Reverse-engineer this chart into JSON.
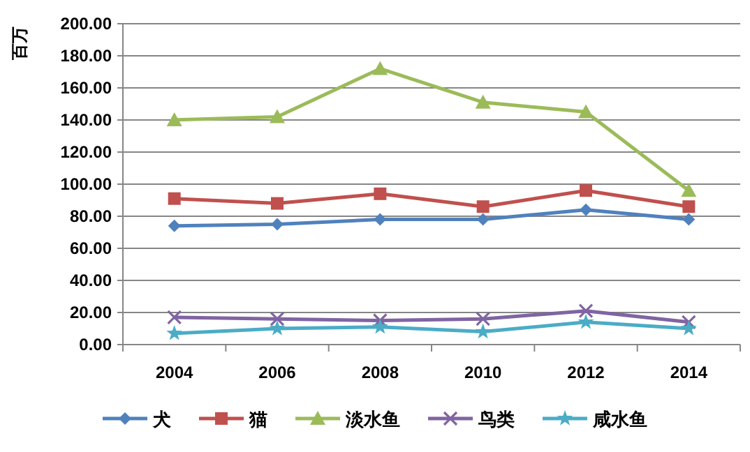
{
  "chart_data": {
    "type": "line",
    "ylabel": "百万",
    "categories": [
      "2004",
      "2006",
      "2008",
      "2010",
      "2012",
      "2014"
    ],
    "series": [
      {
        "name": "犬",
        "color": "#4f81bd",
        "marker": "diamond",
        "values": [
          74,
          75,
          78,
          78,
          84,
          78
        ]
      },
      {
        "name": "猫",
        "color": "#c0504d",
        "marker": "square",
        "values": [
          91,
          88,
          94,
          86,
          96,
          86
        ]
      },
      {
        "name": "淡水鱼",
        "color": "#9bbb59",
        "marker": "triangle",
        "values": [
          140,
          142,
          172,
          151,
          145,
          96
        ]
      },
      {
        "name": "鸟类",
        "color": "#8064a2",
        "marker": "cross",
        "values": [
          17,
          16,
          15,
          16,
          21,
          14
        ]
      },
      {
        "name": "咸水鱼",
        "color": "#4bacc6",
        "marker": "star",
        "values": [
          7,
          10,
          11,
          8,
          14,
          10
        ]
      }
    ],
    "ylim": [
      0,
      200
    ],
    "yticks": [
      {
        "value": 0,
        "label": "0.00"
      },
      {
        "value": 20,
        "label": "20.00"
      },
      {
        "value": 40,
        "label": "40.00"
      },
      {
        "value": 60,
        "label": "60.00"
      },
      {
        "value": 80,
        "label": "80.00"
      },
      {
        "value": 100,
        "label": "100.00"
      },
      {
        "value": 120,
        "label": "120.00"
      },
      {
        "value": 140,
        "label": "140.00"
      },
      {
        "value": 160,
        "label": "160.00"
      },
      {
        "value": 180,
        "label": "180.00"
      },
      {
        "value": 200,
        "label": "200.00"
      }
    ],
    "grid": "y",
    "legend": "bottom",
    "line_style": "solid"
  }
}
